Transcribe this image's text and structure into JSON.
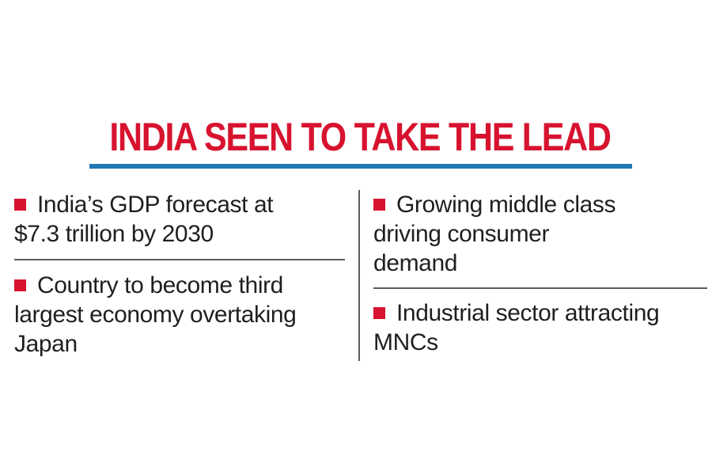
{
  "headline": "INDIA SEEN TO TAKE THE LEAD",
  "colors": {
    "headline": "#d7132f",
    "bullet": "#d7132f",
    "rule": "#2277b5",
    "text": "#1f1f1f"
  },
  "left_column": [
    {
      "line1": "India’s GDP forecast at",
      "line2": "$7.3 trillion by 2030",
      "line3": ""
    },
    {
      "line1": "Country to become third",
      "line2": "largest economy overtaking",
      "line3": "Japan"
    }
  ],
  "right_column": [
    {
      "line1": "Growing middle class",
      "line2": "driving consumer",
      "line3": "demand"
    },
    {
      "line1": "Industrial sector attracting",
      "line2": "MNCs",
      "line3": ""
    }
  ]
}
